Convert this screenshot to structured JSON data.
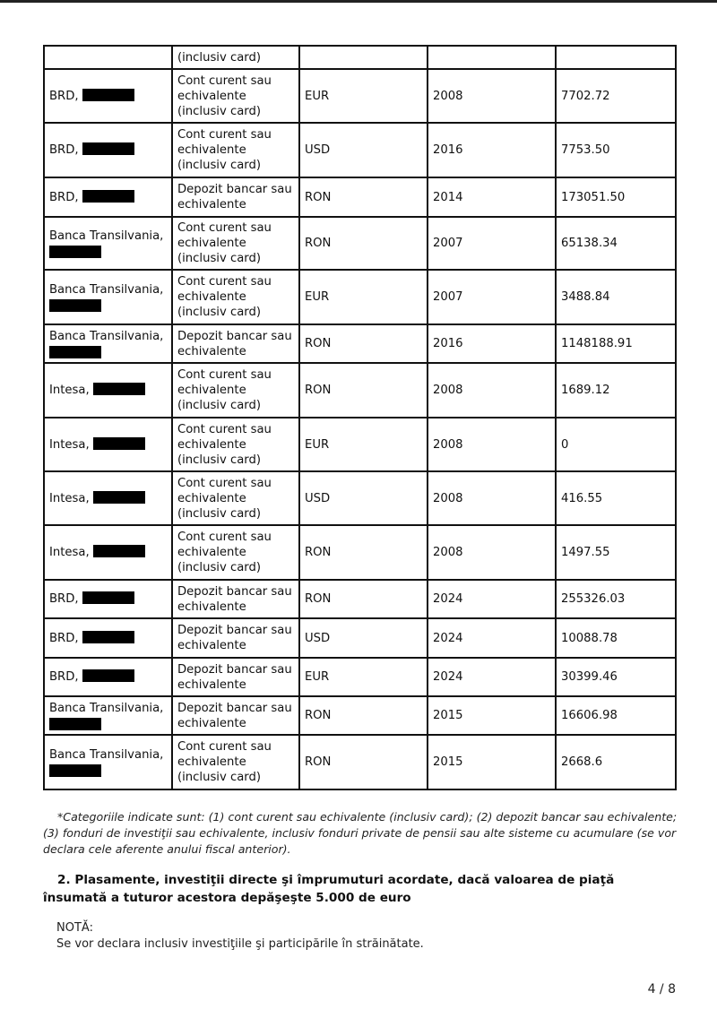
{
  "table": {
    "rows": [
      {
        "holder": "",
        "redacted": false,
        "category": "(inclusiv card)",
        "currency": "",
        "year": "",
        "balance": "",
        "height": 26
      },
      {
        "holder": "BRD,",
        "redacted": true,
        "category": "Cont curent sau echivalente (inclusiv card)",
        "currency": "EUR",
        "year": "2008",
        "balance": "7702.72",
        "height": 60
      },
      {
        "holder": "BRD,",
        "redacted": true,
        "category": "Cont curent sau echivalente (inclusiv card)",
        "currency": "USD",
        "year": "2016",
        "balance": "7753.50",
        "height": 61
      },
      {
        "holder": "BRD,",
        "redacted": true,
        "category": "Depozit bancar sau echivalente",
        "currency": "RON",
        "year": "2014",
        "balance": "173051.50",
        "height": 44
      },
      {
        "holder": "Banca Transilvania,",
        "redacted": true,
        "category": "Cont curent sau echivalente (inclusiv card)",
        "currency": "RON",
        "year": "2007",
        "balance": "65138.34",
        "height": 59
      },
      {
        "holder": "Banca Transilvania,",
        "redacted": true,
        "category": "Cont curent sau echivalente (inclusiv card)",
        "currency": "EUR",
        "year": "2007",
        "balance": "3488.84",
        "height": 61
      },
      {
        "holder": "Banca Transilvania,",
        "redacted": true,
        "category": "Depozit bancar sau echivalente",
        "currency": "RON",
        "year": "2016",
        "balance": "1148188.91",
        "height": 43
      },
      {
        "holder": "Intesa,",
        "redacted": true,
        "category": "Cont curent sau echivalente (inclusiv card)",
        "currency": "RON",
        "year": "2008",
        "balance": "1689.12",
        "height": 61
      },
      {
        "holder": "Intesa,",
        "redacted": true,
        "category": "Cont curent sau echivalente (inclusiv card)",
        "currency": "EUR",
        "year": "2008",
        "balance": "0",
        "height": 60
      },
      {
        "holder": "Intesa,",
        "redacted": true,
        "category": "Cont curent sau echivalente (inclusiv card)",
        "currency": "USD",
        "year": "2008",
        "balance": "416.55",
        "height": 60
      },
      {
        "holder": "Intesa,",
        "redacted": true,
        "category": "Cont curent sau echivalente (inclusiv card)",
        "currency": "RON",
        "year": "2008",
        "balance": "1497.55",
        "height": 61
      },
      {
        "holder": "BRD,",
        "redacted": true,
        "category": "Depozit bancar sau echivalente",
        "currency": "RON",
        "year": "2024",
        "balance": "255326.03",
        "height": 43
      },
      {
        "holder": "BRD,",
        "redacted": true,
        "category": "Depozit bancar sau echivalente",
        "currency": "USD",
        "year": "2024",
        "balance": "10088.78",
        "height": 44
      },
      {
        "holder": "BRD,",
        "redacted": true,
        "category": "Depozit bancar sau echivalente",
        "currency": "EUR",
        "year": "2024",
        "balance": "30399.46",
        "height": 43
      },
      {
        "holder": "Banca Transilvania,",
        "redacted": true,
        "category": "Depozit bancar sau echivalente",
        "currency": "RON",
        "year": "2015",
        "balance": "16606.98",
        "height": 43
      },
      {
        "holder": "Banca Transilvania,",
        "redacted": true,
        "category": "Cont curent sau echivalente (inclusiv card)",
        "currency": "RON",
        "year": "2015",
        "balance": "2668.6",
        "height": 61
      }
    ]
  },
  "footnote": "*Categoriile indicate sunt: (1) cont curent sau echivalente (inclusiv card); (2) depozit bancar sau echivalente; (3) fonduri de investiţii sau echivalente, inclusiv fonduri private de pensii sau alte sisteme cu acumulare (se vor declara cele aferente anului fiscal anterior).",
  "section_heading": "2. Plasamente, investiţii directe şi împrumuturi acordate, dacă valoarea de piaţă însumată a tuturor acestora depăşeşte 5.000 de euro",
  "nota_label": "NOTĂ:",
  "nota_text": "Se vor declara inclusiv investiţiile şi participările în străinătate.",
  "page_number": "4 / 8"
}
